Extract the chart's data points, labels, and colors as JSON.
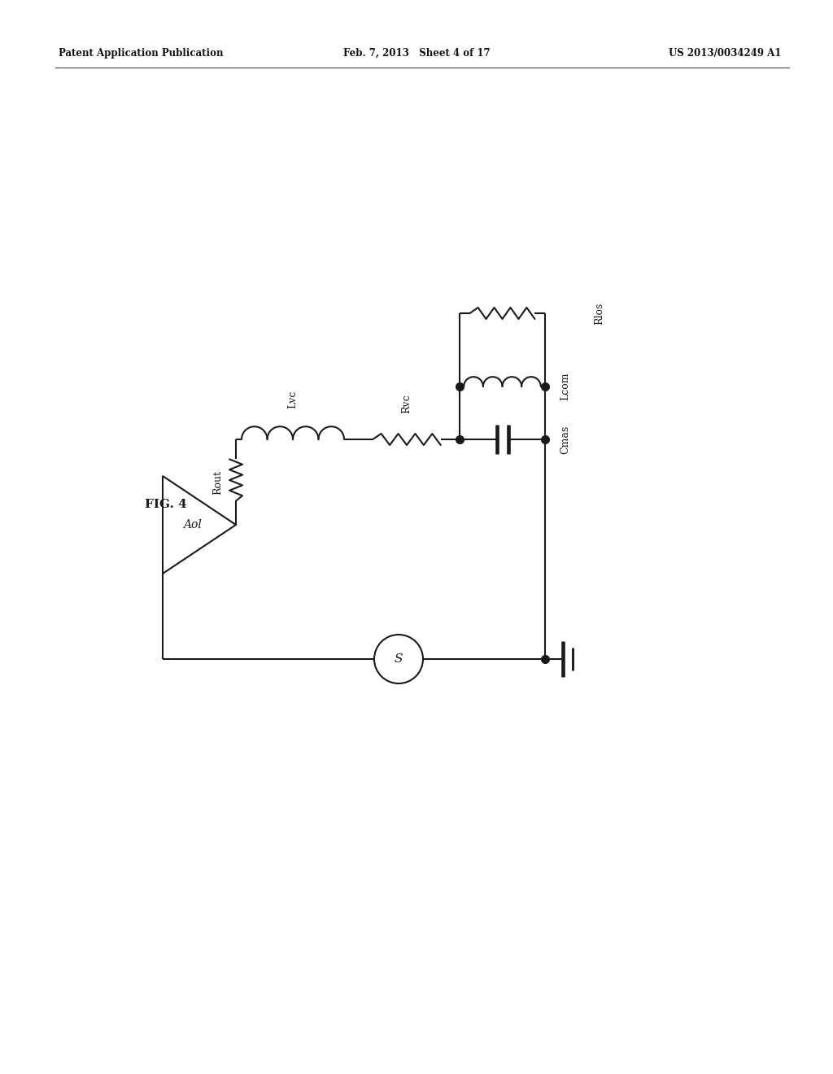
{
  "header_left": "Patent Application Publication",
  "header_mid": "Feb. 7, 2013   Sheet 4 of 17",
  "header_right": "US 2013/0034249 A1",
  "fig_label": "FIG. 4",
  "labels": {
    "Rout": "Rout",
    "Lvc": "Lvc",
    "Rvc": "Rvc",
    "Cmas": "Cmas",
    "Lcom": "Lcom",
    "Rlos": "Rlos",
    "Aol": "Aol",
    "S": "S"
  },
  "bg_color": "#ffffff",
  "line_color": "#1a1a1a",
  "lw": 1.5,
  "dot_ms": 7
}
